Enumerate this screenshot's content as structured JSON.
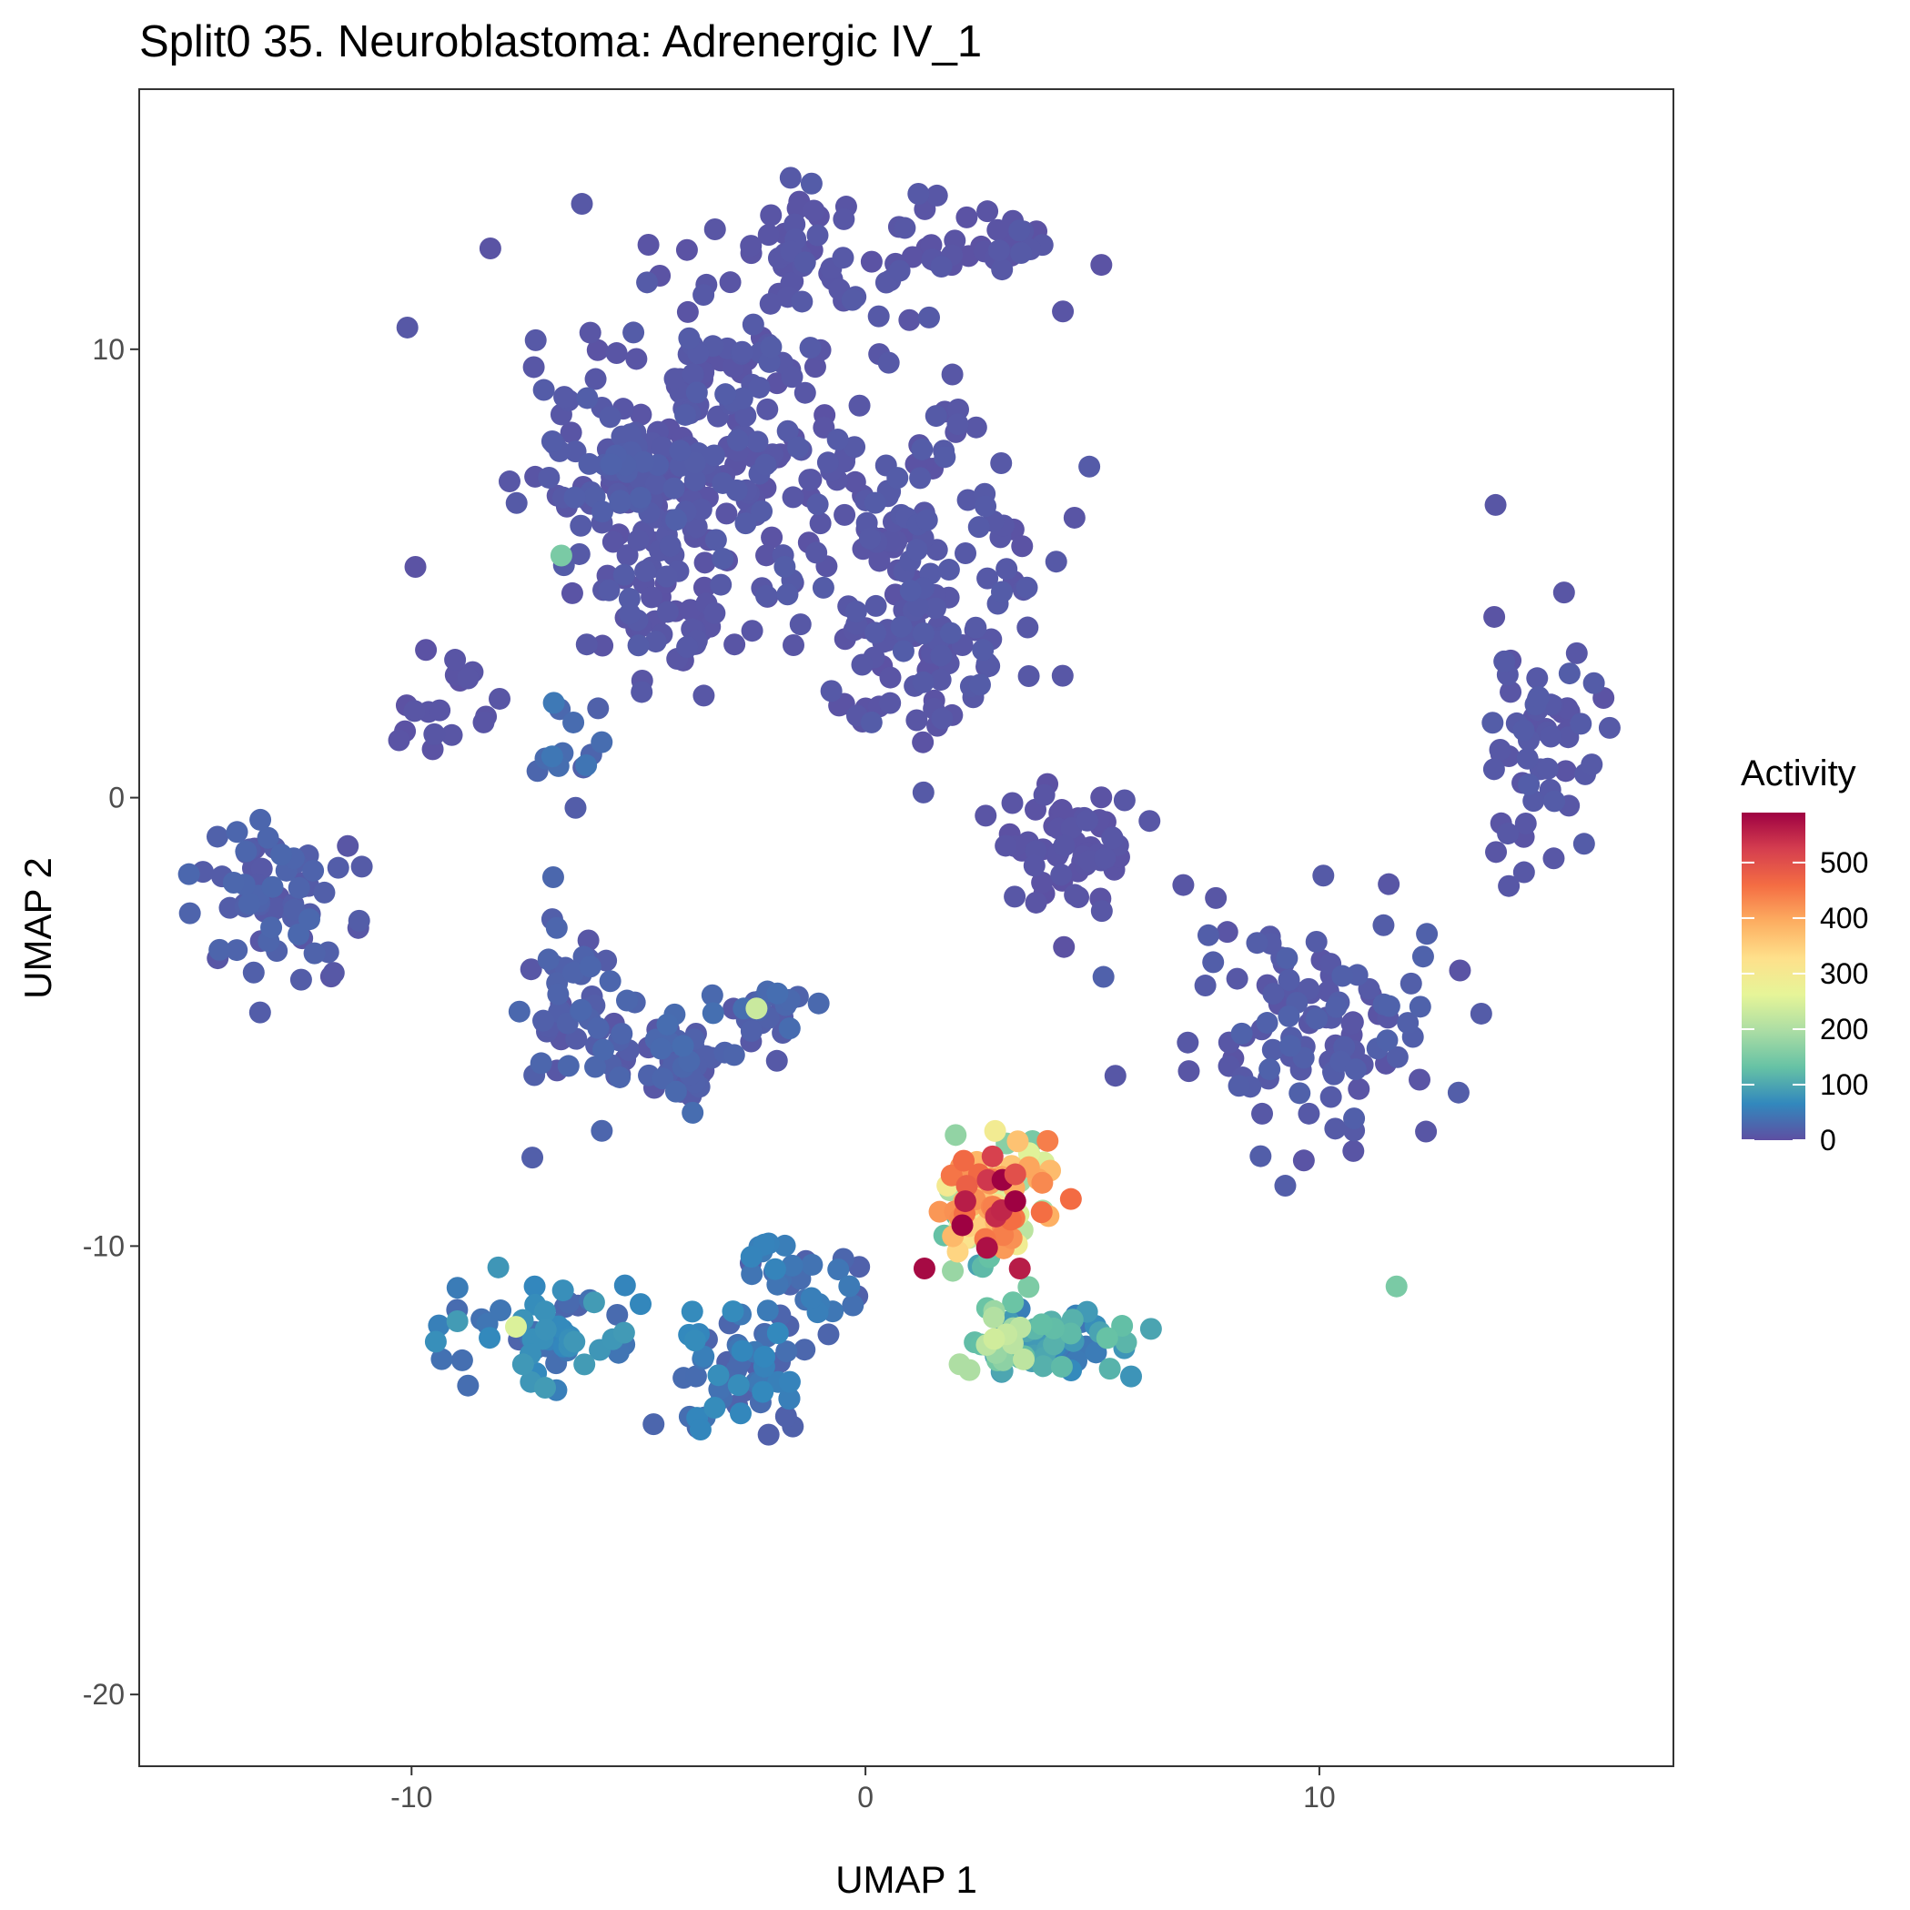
{
  "chart_data": {
    "type": "scatter",
    "title": "Split0 35. Neuroblastoma: Adrenergic IV_1",
    "xlabel": "UMAP 1",
    "ylabel": "UMAP 2",
    "xlim": [
      -16,
      17.8
    ],
    "ylim": [
      -21.6,
      15.8
    ],
    "x_ticks": [
      -10,
      0,
      10
    ],
    "x_tick_labels": [
      "-10",
      "0",
      "10"
    ],
    "y_ticks": [
      -20,
      -10,
      0,
      10
    ],
    "y_tick_labels": [
      "-20",
      "-10",
      "0",
      "10"
    ],
    "grid": false,
    "color_scale": {
      "title": "Activity",
      "palette": "Spectral (reversed)",
      "min": 0,
      "max": 590,
      "breaks": [
        0,
        100,
        200,
        300,
        400,
        500
      ],
      "break_labels": [
        "0",
        "100",
        "200",
        "300",
        "400",
        "500"
      ],
      "colors": [
        "#5e4fa2",
        "#3288bd",
        "#66c2a5",
        "#abdda4",
        "#e6f598",
        "#fee08b",
        "#fdae61",
        "#f46d43",
        "#d53e4f",
        "#9e0142"
      ],
      "legend_position": "right"
    },
    "clusters": [
      {
        "center": [
          -3.2,
          8.2
        ],
        "spread": [
          3.6,
          3.6
        ],
        "value": 10,
        "n": 220
      },
      {
        "center": [
          -5.8,
          6.6
        ],
        "spread": [
          1.6,
          2.2
        ],
        "value": 14,
        "n": 60
      },
      {
        "center": [
          -1.5,
          12.2
        ],
        "spread": [
          1.2,
          1.4
        ],
        "value": 8,
        "n": 30
      },
      {
        "center": [
          1.8,
          12.3
        ],
        "spread": [
          2.6,
          1.0
        ],
        "value": 8,
        "n": 40
      },
      {
        "center": [
          1.0,
          5.5
        ],
        "spread": [
          2.8,
          3.0
        ],
        "value": 10,
        "n": 110
      },
      {
        "center": [
          -4.7,
          4.0
        ],
        "spread": [
          1.8,
          1.5
        ],
        "value": 8,
        "n": 40
      },
      {
        "center": [
          1.3,
          3.0
        ],
        "spread": [
          2.0,
          1.8
        ],
        "value": 8,
        "n": 50
      },
      {
        "center": [
          -6.6,
          1.2
        ],
        "spread": [
          0.8,
          1.4
        ],
        "value": 30,
        "n": 14
      },
      {
        "center": [
          -9.0,
          2.9
        ],
        "spread": [
          0.8,
          0.8
        ],
        "value": 8,
        "n": 10
      },
      {
        "center": [
          -9.8,
          1.8
        ],
        "spread": [
          0.6,
          0.5
        ],
        "value": 5,
        "n": 8
      },
      {
        "center": [
          -13.0,
          -2.3
        ],
        "spread": [
          1.9,
          1.6
        ],
        "value": 18,
        "n": 70
      },
      {
        "center": [
          4.5,
          -1.2
        ],
        "spread": [
          1.5,
          1.2
        ],
        "value": 6,
        "n": 60
      },
      {
        "center": [
          14.9,
          1.5
        ],
        "spread": [
          1.2,
          2.6
        ],
        "value": 10,
        "n": 60
      },
      {
        "center": [
          10.0,
          -5.2
        ],
        "spread": [
          2.6,
          2.4
        ],
        "value": 14,
        "n": 110
      },
      {
        "center": [
          -6.5,
          -4.8
        ],
        "spread": [
          1.2,
          2.0
        ],
        "value": 18,
        "n": 50
      },
      {
        "center": [
          -4.0,
          -5.8
        ],
        "spread": [
          1.8,
          1.0
        ],
        "value": 22,
        "n": 50
      },
      {
        "center": [
          -1.8,
          -4.7
        ],
        "spread": [
          1.2,
          0.6
        ],
        "value": 28,
        "n": 20
      },
      {
        "center": [
          -7.0,
          -11.8
        ],
        "spread": [
          1.7,
          1.0
        ],
        "value": 55,
        "n": 60
      },
      {
        "center": [
          -2.8,
          -12.8
        ],
        "spread": [
          1.4,
          1.5
        ],
        "value": 45,
        "n": 60
      },
      {
        "center": [
          -1.2,
          -10.8
        ],
        "spread": [
          1.3,
          0.8
        ],
        "value": 40,
        "n": 30
      },
      {
        "center": [
          4.2,
          -12.2
        ],
        "spread": [
          1.8,
          0.6
        ],
        "value": 85,
        "n": 50
      },
      {
        "center": [
          2.9,
          -12.0
        ],
        "spread": [
          0.5,
          1.0
        ],
        "value": 150,
        "n": 30
      },
      {
        "center": [
          2.8,
          -9.0
        ],
        "spread": [
          1.0,
          1.4
        ],
        "value": 300,
        "n": 110
      },
      {
        "center": [
          2.8,
          -9.4
        ],
        "spread": [
          0.7,
          0.9
        ],
        "value": 430,
        "n": 20
      }
    ],
    "highlight_points": [
      {
        "x": 1.3,
        "y": -10.5,
        "value": 580
      },
      {
        "x": 3.3,
        "y": -9.0,
        "value": 590
      },
      {
        "x": 2.2,
        "y": -9.0,
        "value": 560
      },
      {
        "x": 3.4,
        "y": -10.5,
        "value": 560
      },
      {
        "x": 3.0,
        "y": -9.2,
        "value": 550
      },
      {
        "x": 2.8,
        "y": -8.0,
        "value": 520
      },
      {
        "x": 3.3,
        "y": -8.4,
        "value": 500
      },
      {
        "x": -2.4,
        "y": -4.7,
        "value": 230
      },
      {
        "x": -6.7,
        "y": 5.4,
        "value": 150
      },
      {
        "x": -7.7,
        "y": -11.8,
        "value": 250
      },
      {
        "x": 11.7,
        "y": -10.9,
        "value": 150
      }
    ]
  }
}
